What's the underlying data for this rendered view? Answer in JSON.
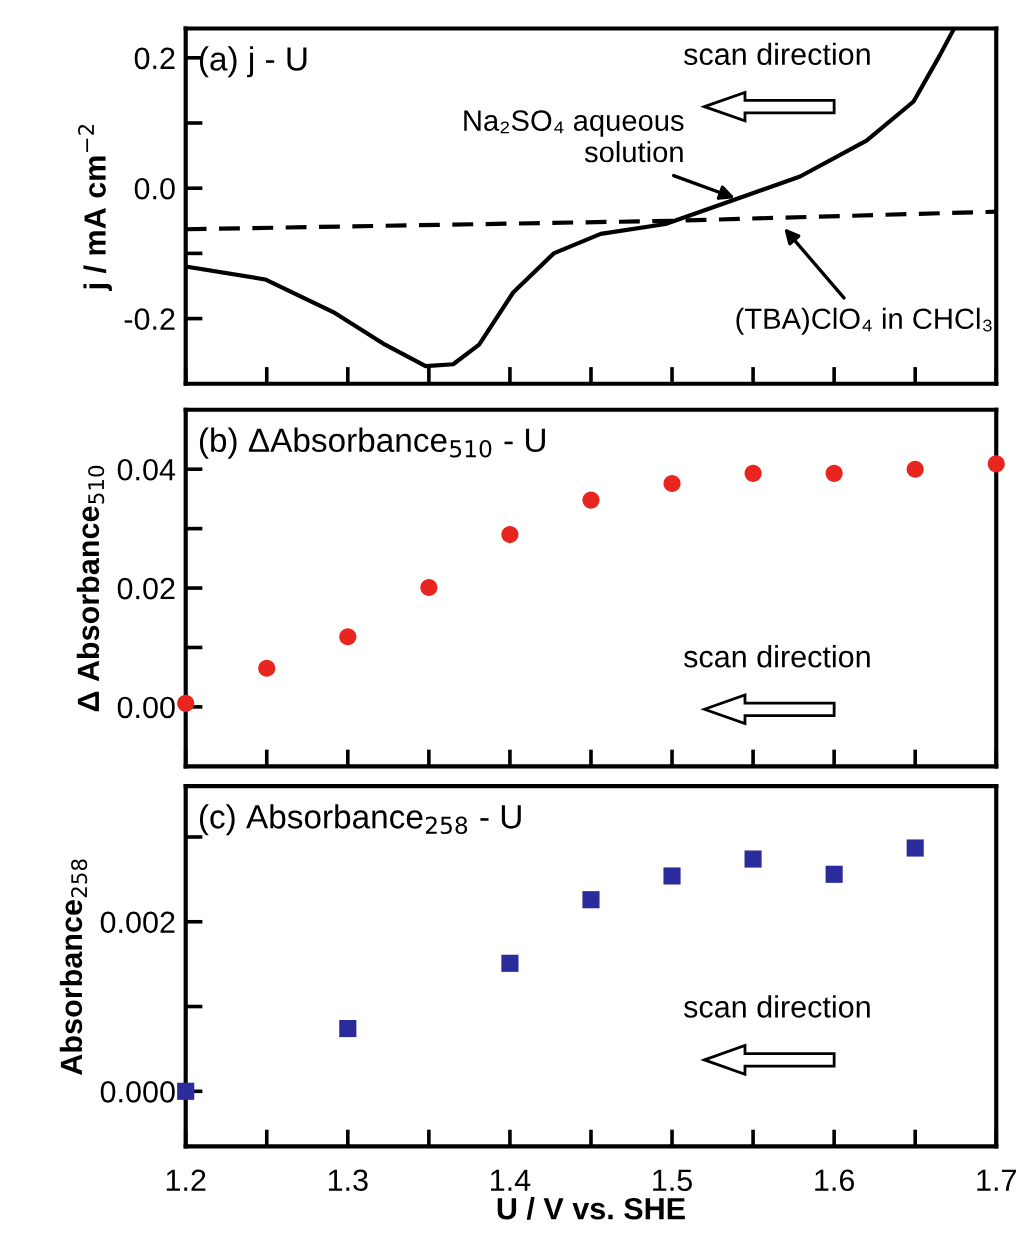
{
  "chart_data": [
    {
      "type": "line",
      "ylabel": "j / mA cm$^{−2}$",
      "xlim": [
        1.2,
        1.7
      ],
      "ylim": [
        -0.3,
        0.245
      ],
      "tick_labels": "y",
      "grid": false,
      "legend": false,
      "xticks": [
        {
          "value": 1.2,
          "label": null
        },
        {
          "value": 1.25,
          "label": null
        },
        {
          "value": 1.3,
          "label": null
        },
        {
          "value": 1.35,
          "label": null
        },
        {
          "value": 1.4,
          "label": null
        },
        {
          "value": 1.45,
          "label": null
        },
        {
          "value": 1.5,
          "label": null
        },
        {
          "value": 1.55,
          "label": null
        },
        {
          "value": 1.6,
          "label": null
        },
        {
          "value": 1.65,
          "label": null
        },
        {
          "value": 1.7,
          "label": null
        }
      ],
      "yticks": [
        {
          "value": -0.2,
          "label": "-0.2"
        },
        {
          "value": -0.1,
          "label": null
        },
        {
          "value": 0.0,
          "label": "0.0"
        },
        {
          "value": 0.1,
          "label": null
        },
        {
          "value": 0.2,
          "label": "0.2"
        }
      ],
      "series": [
        {
          "color": "#000000",
          "line_style": "solid",
          "x": [
            1.2,
            1.249,
            1.291,
            1.323,
            1.348,
            1.365,
            1.381,
            1.402,
            1.427,
            1.456,
            1.496,
            1.538,
            1.579,
            1.62,
            1.649,
            1.665,
            1.674
          ],
          "values": [
            -0.12,
            -0.14,
            -0.19,
            -0.24,
            -0.273,
            -0.27,
            -0.24,
            -0.16,
            -0.1,
            -0.07,
            -0.055,
            -0.018,
            0.018,
            0.073,
            0.133,
            0.203,
            0.245
          ]
        },
        {
          "color": "#000000",
          "line_style": "dashed",
          "x": [
            1.2,
            1.5,
            1.7
          ],
          "values": [
            -0.063,
            -0.05,
            -0.036
          ]
        }
      ],
      "annotations": [
        "(a) j - U",
        "scan direction",
        {
          "text": "Na₂SO₄ aqueous\nsolution",
          "x": 1.542,
          "y": -0.018
        },
        {
          "text": "(TBA)ClO₄ in CHCl₃",
          "x": 1.567,
          "y": -0.055
        }
      ]
    },
    {
      "type": "scatter",
      "ylabel": "Δ Absorbance$_{510}$",
      "xlim": [
        1.2,
        1.7
      ],
      "ylim": [
        -0.01,
        0.05
      ],
      "tick_labels": "y",
      "grid": false,
      "legend": false,
      "marker": "circle",
      "xticks": [
        {
          "value": 1.2,
          "label": null
        },
        {
          "value": 1.25,
          "label": null
        },
        {
          "value": 1.3,
          "label": null
        },
        {
          "value": 1.35,
          "label": null
        },
        {
          "value": 1.4,
          "label": null
        },
        {
          "value": 1.45,
          "label": null
        },
        {
          "value": 1.5,
          "label": null
        },
        {
          "value": 1.55,
          "label": null
        },
        {
          "value": 1.6,
          "label": null
        },
        {
          "value": 1.65,
          "label": null
        },
        {
          "value": 1.7,
          "label": null
        }
      ],
      "yticks": [
        {
          "value": 0.0,
          "label": "0.00"
        },
        {
          "value": 0.01,
          "label": null
        },
        {
          "value": 0.02,
          "label": "0.02"
        },
        {
          "value": 0.03,
          "label": null
        },
        {
          "value": 0.04,
          "label": "0.04"
        }
      ],
      "series": [
        {
          "color": "#e8261f",
          "x": [
            1.2,
            1.25,
            1.3,
            1.35,
            1.4,
            1.45,
            1.5,
            1.55,
            1.6,
            1.65,
            1.7
          ],
          "values": [
            0.0006,
            0.0065,
            0.0118,
            0.0201,
            0.029,
            0.0348,
            0.0376,
            0.0393,
            0.0393,
            0.04,
            0.0409
          ]
        }
      ],
      "annotations": [
        "(b) ΔAbsorbance$_{510}$ - U",
        "scan direction"
      ]
    },
    {
      "type": "scatter",
      "ylabel": "Absorbance$_{258}$",
      "xlabel": "U / V vs. SHE",
      "xlim": [
        1.2,
        1.7
      ],
      "ylim": [
        -0.00065,
        0.0036
      ],
      "grid": false,
      "legend": false,
      "marker": "square",
      "xticks": [
        {
          "value": 1.2,
          "label": "1.2"
        },
        {
          "value": 1.25,
          "label": null
        },
        {
          "value": 1.3,
          "label": "1.3"
        },
        {
          "value": 1.35,
          "label": null
        },
        {
          "value": 1.4,
          "label": "1.4"
        },
        {
          "value": 1.45,
          "label": null
        },
        {
          "value": 1.5,
          "label": "1.5"
        },
        {
          "value": 1.55,
          "label": null
        },
        {
          "value": 1.6,
          "label": "1.6"
        },
        {
          "value": 1.65,
          "label": null
        },
        {
          "value": 1.7,
          "label": "1.7"
        }
      ],
      "yticks": [
        {
          "value": 0.0,
          "label": "0.000"
        },
        {
          "value": 0.001,
          "label": null
        },
        {
          "value": 0.002,
          "label": "0.002"
        },
        {
          "value": 0.003,
          "label": null
        }
      ],
      "series": [
        {
          "color": "#2b2b9b",
          "x": [
            1.2,
            1.3,
            1.4,
            1.45,
            1.5,
            1.55,
            1.6,
            1.65
          ],
          "values": [
            0.0,
            0.00074,
            0.00151,
            0.00226,
            0.00254,
            0.00274,
            0.00256,
            0.00287
          ]
        }
      ],
      "annotations": [
        "(c) Absorbance$_{258}$ - U",
        "scan direction"
      ]
    }
  ]
}
